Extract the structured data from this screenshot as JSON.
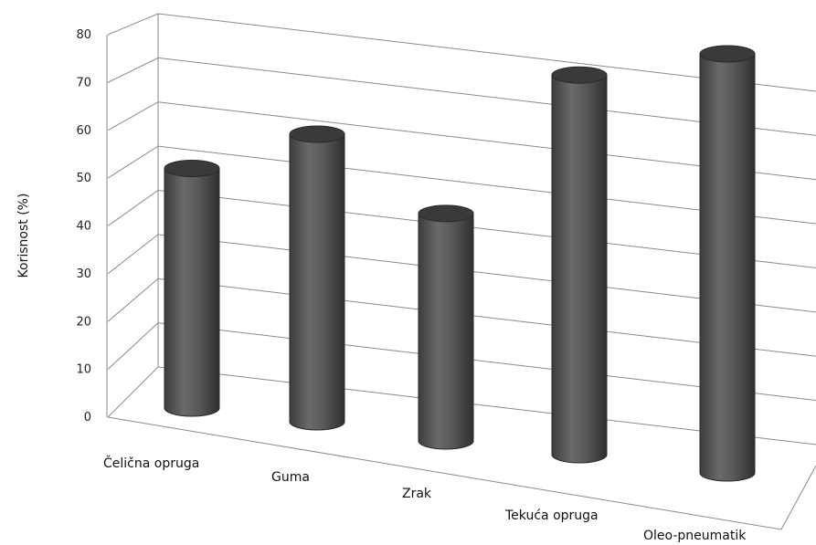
{
  "chart_data": {
    "type": "bar",
    "style": "3d-cylinder",
    "categories": [
      "Čelična opruga",
      "Guma",
      "Zrak",
      "Tekuća opruga",
      "Oleo-pneumatik"
    ],
    "values": [
      50,
      60,
      47,
      77,
      85
    ],
    "title": "",
    "xlabel": "",
    "ylabel": "Korisnost (%)",
    "ylim": [
      0,
      80
    ],
    "yticks": [
      "0",
      "10",
      "20",
      "30",
      "40",
      "50",
      "60",
      "70",
      "80"
    ],
    "grid": true,
    "legend": "none",
    "colors": {
      "bar": "#555555",
      "bar_top": "#3a3a3a",
      "grid": "#8a8a8a"
    }
  }
}
